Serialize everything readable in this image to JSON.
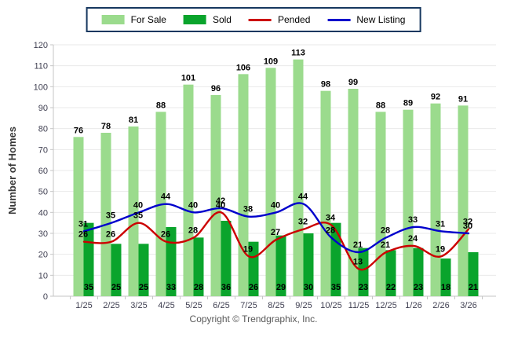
{
  "chart_data": {
    "type": "bar+line",
    "title": "",
    "categories": [
      "1/25",
      "2/25",
      "3/25",
      "4/25",
      "5/25",
      "6/25",
      "7/25",
      "8/25",
      "9/25",
      "10/25",
      "11/25",
      "12/25",
      "1/26",
      "2/26",
      "3/26"
    ],
    "series": [
      {
        "name": "For Sale",
        "type": "bar",
        "color": "#9BDB8D",
        "values": [
          76,
          78,
          81,
          88,
          101,
          96,
          106,
          109,
          113,
          98,
          99,
          88,
          89,
          92,
          91
        ]
      },
      {
        "name": "Sold",
        "type": "bar",
        "color": "#0AA42C",
        "values": [
          35,
          25,
          25,
          33,
          28,
          36,
          26,
          29,
          30,
          35,
          23,
          22,
          23,
          18,
          21
        ]
      },
      {
        "name": "Pended",
        "type": "line",
        "color": "#CC0000",
        "values": [
          26,
          26,
          35,
          26,
          28,
          40,
          19,
          27,
          32,
          34,
          13,
          21,
          24,
          19,
          32
        ]
      },
      {
        "name": "New Listing",
        "type": "line",
        "color": "#0000CC",
        "values": [
          31,
          35,
          40,
          44,
          40,
          42,
          38,
          40,
          44,
          28,
          21,
          28,
          33,
          31,
          30
        ]
      }
    ],
    "xlabel": "",
    "ylabel": "Number of Homes",
    "ylim": [
      0,
      120
    ],
    "ytick_step": 10,
    "grid": "horizontal",
    "legend_position": "top"
  },
  "colors": {
    "grid": "#E9E9E9",
    "axis": "#C6C6C6",
    "tick_label": "#3F3F51",
    "value_label": "#000000",
    "ylabel_color": "#3A3A3A",
    "legend_border": "#16375F",
    "footer_text": "#595959"
  },
  "footer": {
    "copyright": "Copyright © Trendgraphix, Inc."
  }
}
